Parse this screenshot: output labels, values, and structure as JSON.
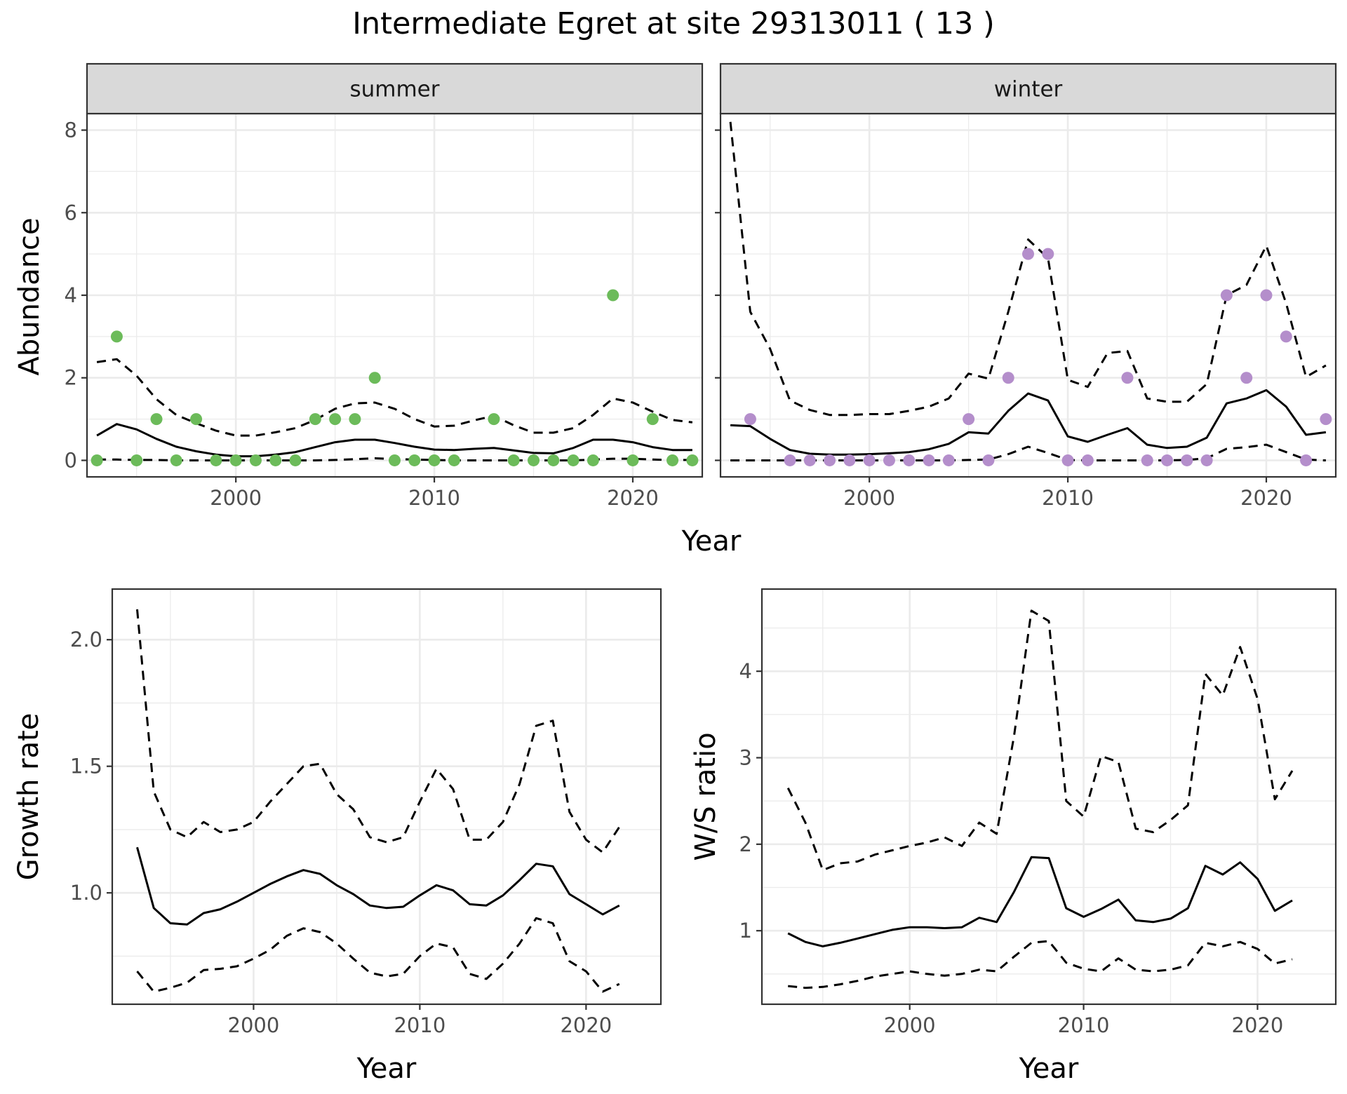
{
  "title": "Intermediate Egret at site 29313011 ( 13 )",
  "colors": {
    "summer_points": "#6cbb5a",
    "winter_points": "#b48ecb",
    "strip_bg": "#d9d9d9"
  },
  "chart_data": [
    {
      "id": "summer",
      "type": "scatter",
      "strip": "summer",
      "xlabel": "Year",
      "ylabel": "Abundance",
      "xlim": [
        1992.5,
        2023.5
      ],
      "ylim": [
        -0.4,
        8.4
      ],
      "xticks": [
        2000,
        2010,
        2020
      ],
      "yticks": [
        0,
        2,
        4,
        6,
        8
      ],
      "grid": true,
      "observed": {
        "x": [
          1993,
          1994,
          1995,
          1996,
          1997,
          1998,
          1999,
          2000,
          2001,
          2002,
          2003,
          2004,
          2005,
          2006,
          2007,
          2008,
          2009,
          2010,
          2011,
          2013,
          2014,
          2015,
          2016,
          2017,
          2018,
          2019,
          2020,
          2021,
          2022,
          2023
        ],
        "y": [
          0,
          3,
          0,
          1,
          0,
          1,
          0,
          0,
          0,
          0,
          0,
          1,
          1,
          1,
          2,
          0,
          0,
          0,
          0,
          1,
          0,
          0,
          0,
          0,
          0,
          4,
          0,
          1,
          0,
          0
        ]
      },
      "series": [
        {
          "style": "solid",
          "x": [
            1993,
            1994,
            1995,
            1996,
            1997,
            1998,
            1999,
            2000,
            2001,
            2002,
            2003,
            2004,
            2005,
            2006,
            2007,
            2008,
            2009,
            2010,
            2011,
            2012,
            2013,
            2014,
            2015,
            2016,
            2017,
            2018,
            2019,
            2020,
            2021,
            2022,
            2023
          ],
          "y": [
            0.6,
            0.88,
            0.75,
            0.52,
            0.33,
            0.22,
            0.14,
            0.1,
            0.1,
            0.14,
            0.2,
            0.32,
            0.44,
            0.5,
            0.5,
            0.42,
            0.33,
            0.26,
            0.25,
            0.28,
            0.3,
            0.24,
            0.18,
            0.17,
            0.3,
            0.5,
            0.5,
            0.44,
            0.32,
            0.25,
            0.25
          ]
        },
        {
          "style": "dashed",
          "x": [
            1993,
            1994,
            1995,
            1996,
            1997,
            1998,
            1999,
            2000,
            2001,
            2002,
            2003,
            2004,
            2005,
            2006,
            2007,
            2008,
            2009,
            2010,
            2011,
            2012,
            2013,
            2014,
            2015,
            2016,
            2017,
            2018,
            2019,
            2020,
            2021,
            2022,
            2023
          ],
          "y": [
            2.38,
            2.45,
            2.05,
            1.48,
            1.1,
            0.9,
            0.72,
            0.6,
            0.6,
            0.68,
            0.78,
            0.98,
            1.25,
            1.38,
            1.4,
            1.25,
            1.0,
            0.82,
            0.84,
            0.97,
            1.08,
            0.85,
            0.67,
            0.67,
            0.78,
            1.1,
            1.5,
            1.4,
            1.18,
            0.98,
            0.92
          ]
        },
        {
          "style": "dashed",
          "x": [
            1993,
            1994,
            1995,
            1996,
            1997,
            1998,
            1999,
            2000,
            2001,
            2002,
            2003,
            2004,
            2005,
            2006,
            2007,
            2008,
            2009,
            2010,
            2011,
            2012,
            2013,
            2014,
            2015,
            2016,
            2017,
            2018,
            2019,
            2020,
            2021,
            2022,
            2023
          ],
          "y": [
            0.02,
            0.02,
            0.01,
            0.01,
            0.0,
            0.0,
            0.0,
            0.0,
            0.0,
            0.0,
            0.0,
            0.0,
            0.01,
            0.03,
            0.05,
            0.03,
            0.02,
            0.01,
            0.0,
            0.0,
            0.0,
            0.0,
            0.0,
            0.0,
            0.0,
            0.02,
            0.04,
            0.04,
            0.02,
            0.01,
            0.01
          ]
        }
      ]
    },
    {
      "id": "winter",
      "type": "scatter",
      "strip": "winter",
      "xlabel": "Year",
      "ylabel": "Abundance",
      "xlim": [
        1992.5,
        2023.5
      ],
      "ylim": [
        -0.4,
        8.4
      ],
      "xticks": [
        2000,
        2010,
        2020
      ],
      "yticks": [
        0,
        2,
        4,
        6,
        8
      ],
      "grid": true,
      "observed": {
        "x": [
          1994,
          1996,
          1997,
          1998,
          1999,
          2000,
          2001,
          2002,
          2003,
          2004,
          2005,
          2006,
          2007,
          2008,
          2009,
          2010,
          2011,
          2013,
          2014,
          2015,
          2016,
          2017,
          2018,
          2019,
          2020,
          2021,
          2022,
          2023
        ],
        "y": [
          1,
          0,
          0,
          0,
          0,
          0,
          0,
          0,
          0,
          0,
          1,
          0,
          2,
          5,
          5,
          0,
          0,
          2,
          0,
          0,
          0,
          0,
          4,
          2,
          4,
          3,
          0,
          1
        ]
      },
      "series": [
        {
          "style": "solid",
          "x": [
            1993,
            1994,
            1995,
            1996,
            1997,
            1998,
            1999,
            2000,
            2001,
            2002,
            2003,
            2004,
            2005,
            2006,
            2007,
            2008,
            2009,
            2010,
            2011,
            2012,
            2013,
            2014,
            2015,
            2016,
            2017,
            2018,
            2019,
            2020,
            2021,
            2022,
            2023
          ],
          "y": [
            0.85,
            0.83,
            0.52,
            0.25,
            0.16,
            0.14,
            0.14,
            0.15,
            0.17,
            0.2,
            0.27,
            0.4,
            0.68,
            0.65,
            1.2,
            1.62,
            1.45,
            0.58,
            0.45,
            0.62,
            0.78,
            0.38,
            0.3,
            0.33,
            0.55,
            1.38,
            1.5,
            1.7,
            1.3,
            0.62,
            0.68
          ]
        },
        {
          "style": "dashed",
          "x": [
            1993,
            1994,
            1995,
            1996,
            1997,
            1998,
            1999,
            2000,
            2001,
            2002,
            2003,
            2004,
            2005,
            2006,
            2007,
            2008,
            2009,
            2010,
            2011,
            2012,
            2013,
            2014,
            2015,
            2016,
            2017,
            2018,
            2019,
            2020,
            2021,
            2022,
            2023
          ],
          "y": [
            8.2,
            3.6,
            2.7,
            1.45,
            1.22,
            1.1,
            1.1,
            1.12,
            1.12,
            1.2,
            1.3,
            1.5,
            2.1,
            1.98,
            3.6,
            5.35,
            4.9,
            1.95,
            1.78,
            2.6,
            2.65,
            1.5,
            1.42,
            1.42,
            1.85,
            4.0,
            4.25,
            5.2,
            3.8,
            2.02,
            2.3
          ]
        },
        {
          "style": "dashed",
          "x": [
            1993,
            1994,
            1995,
            1996,
            1997,
            1998,
            1999,
            2000,
            2001,
            2002,
            2003,
            2004,
            2005,
            2006,
            2007,
            2008,
            2009,
            2010,
            2011,
            2012,
            2013,
            2014,
            2015,
            2016,
            2017,
            2018,
            2019,
            2020,
            2021,
            2022,
            2023
          ],
          "y": [
            0.0,
            0.0,
            0.0,
            0.0,
            0.0,
            0.0,
            0.0,
            0.0,
            0.0,
            0.0,
            0.0,
            0.0,
            0.01,
            0.02,
            0.15,
            0.33,
            0.18,
            0.01,
            0.0,
            0.0,
            0.0,
            0.0,
            0.0,
            0.01,
            0.05,
            0.28,
            0.32,
            0.38,
            0.2,
            0.02,
            0.0
          ]
        }
      ]
    },
    {
      "id": "growth",
      "type": "line",
      "xlabel": "Year",
      "ylabel": "Growth rate",
      "xlim": [
        1991.5,
        2024.5
      ],
      "ylim": [
        0.56,
        2.2
      ],
      "xticks": [
        2000,
        2010,
        2020
      ],
      "yticks": [
        1.0,
        1.5,
        2.0
      ],
      "ytick_labels": [
        "1.0",
        "1.5",
        "2.0"
      ],
      "grid": true,
      "series": [
        {
          "style": "solid",
          "x": [
            1993,
            1994,
            1995,
            1996,
            1997,
            1998,
            1999,
            2000,
            2001,
            2002,
            2003,
            2004,
            2005,
            2006,
            2007,
            2008,
            2009,
            2010,
            2011,
            2012,
            2013,
            2014,
            2015,
            2016,
            2017,
            2018,
            2019,
            2020,
            2021,
            2022
          ],
          "y": [
            1.18,
            0.94,
            0.88,
            0.875,
            0.92,
            0.935,
            0.965,
            1.0,
            1.035,
            1.065,
            1.09,
            1.075,
            1.03,
            0.995,
            0.95,
            0.94,
            0.945,
            0.99,
            1.03,
            1.01,
            0.955,
            0.95,
            0.99,
            1.05,
            1.115,
            1.105,
            0.995,
            0.955,
            0.915,
            0.95
          ]
        },
        {
          "style": "dashed",
          "x": [
            1993,
            1994,
            1995,
            1996,
            1997,
            1998,
            1999,
            2000,
            2001,
            2002,
            2003,
            2004,
            2005,
            2006,
            2007,
            2008,
            2009,
            2010,
            2011,
            2012,
            2013,
            2014,
            2015,
            2016,
            2017,
            2018,
            2019,
            2020,
            2021,
            2022
          ],
          "y": [
            2.12,
            1.4,
            1.25,
            1.22,
            1.28,
            1.24,
            1.25,
            1.28,
            1.36,
            1.43,
            1.5,
            1.51,
            1.39,
            1.33,
            1.22,
            1.2,
            1.22,
            1.36,
            1.49,
            1.41,
            1.21,
            1.21,
            1.28,
            1.43,
            1.66,
            1.68,
            1.32,
            1.21,
            1.16,
            1.26
          ]
        },
        {
          "style": "dashed",
          "x": [
            1993,
            1994,
            1995,
            1996,
            1997,
            1998,
            1999,
            2000,
            2001,
            2002,
            2003,
            2004,
            2005,
            2006,
            2007,
            2008,
            2009,
            2010,
            2011,
            2012,
            2013,
            2014,
            2015,
            2016,
            2017,
            2018,
            2019,
            2020,
            2021,
            2022
          ],
          "y": [
            0.69,
            0.61,
            0.625,
            0.645,
            0.695,
            0.7,
            0.71,
            0.74,
            0.775,
            0.83,
            0.86,
            0.845,
            0.8,
            0.74,
            0.685,
            0.67,
            0.68,
            0.75,
            0.8,
            0.785,
            0.68,
            0.66,
            0.72,
            0.8,
            0.9,
            0.88,
            0.73,
            0.69,
            0.61,
            0.64
          ]
        }
      ]
    },
    {
      "id": "ratio",
      "type": "line",
      "xlabel": "Year",
      "ylabel": "W/S ratio",
      "xlim": [
        1991.5,
        2024.5
      ],
      "ylim": [
        0.15,
        4.95
      ],
      "xticks": [
        2000,
        2010,
        2020
      ],
      "yticks": [
        1,
        2,
        3,
        4
      ],
      "grid": true,
      "series": [
        {
          "style": "solid",
          "x": [
            1993,
            1994,
            1995,
            1996,
            1997,
            1998,
            1999,
            2000,
            2001,
            2002,
            2003,
            2004,
            2005,
            2006,
            2007,
            2008,
            2009,
            2010,
            2011,
            2012,
            2013,
            2014,
            2015,
            2016,
            2017,
            2018,
            2019,
            2020,
            2021,
            2022
          ],
          "y": [
            0.97,
            0.87,
            0.82,
            0.86,
            0.91,
            0.96,
            1.01,
            1.04,
            1.04,
            1.03,
            1.04,
            1.15,
            1.1,
            1.45,
            1.85,
            1.84,
            1.26,
            1.16,
            1.25,
            1.36,
            1.12,
            1.1,
            1.14,
            1.26,
            1.75,
            1.65,
            1.79,
            1.6,
            1.23,
            1.35
          ]
        },
        {
          "style": "dashed",
          "x": [
            1993,
            1994,
            1995,
            1996,
            1997,
            1998,
            1999,
            2000,
            2001,
            2002,
            2003,
            2004,
            2005,
            2006,
            2007,
            2008,
            2009,
            2010,
            2011,
            2012,
            2013,
            2014,
            2015,
            2016,
            2017,
            2018,
            2019,
            2020,
            2021,
            2022
          ],
          "y": [
            2.65,
            2.25,
            1.7,
            1.78,
            1.8,
            1.88,
            1.93,
            1.98,
            2.02,
            2.08,
            1.98,
            2.25,
            2.12,
            3.25,
            4.7,
            4.58,
            2.5,
            2.32,
            3.02,
            2.95,
            2.18,
            2.14,
            2.28,
            2.45,
            3.97,
            3.72,
            4.28,
            3.68,
            2.52,
            2.85
          ]
        },
        {
          "style": "dashed",
          "x": [
            1993,
            1994,
            1995,
            1996,
            1997,
            1998,
            1999,
            2000,
            2001,
            2002,
            2003,
            2004,
            2005,
            2006,
            2007,
            2008,
            2009,
            2010,
            2011,
            2012,
            2013,
            2014,
            2015,
            2016,
            2017,
            2018,
            2019,
            2020,
            2021,
            2022
          ],
          "y": [
            0.36,
            0.34,
            0.35,
            0.38,
            0.42,
            0.47,
            0.5,
            0.53,
            0.5,
            0.48,
            0.5,
            0.55,
            0.53,
            0.7,
            0.86,
            0.88,
            0.63,
            0.56,
            0.53,
            0.68,
            0.55,
            0.53,
            0.55,
            0.6,
            0.86,
            0.82,
            0.87,
            0.79,
            0.62,
            0.67
          ]
        }
      ]
    }
  ]
}
